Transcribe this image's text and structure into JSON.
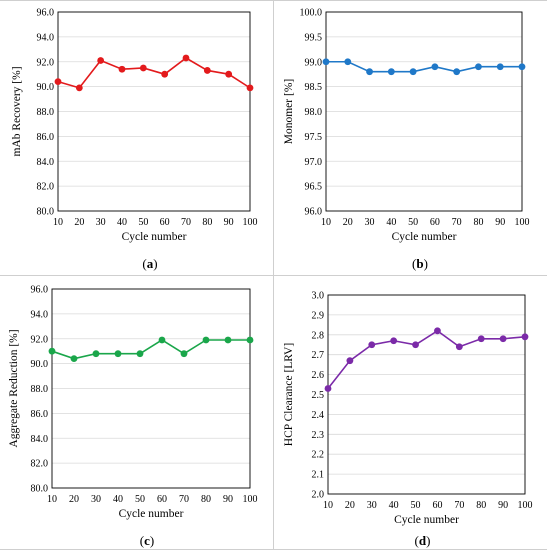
{
  "chart_data": [
    {
      "panel": "(a)",
      "panel_letter": "a",
      "type": "line",
      "color": "#e31a1c",
      "x": [
        10,
        20,
        30,
        40,
        50,
        60,
        70,
        80,
        90,
        100
      ],
      "series": [
        {
          "values": [
            90.4,
            89.9,
            92.1,
            91.4,
            91.5,
            91.0,
            92.3,
            91.3,
            91.0,
            89.9
          ]
        }
      ],
      "xlabel": "Cycle number",
      "ylabel": "mAb Recovery  [%]",
      "xlim": [
        10,
        100
      ],
      "ylim": [
        80.0,
        96.0
      ],
      "yticks": [
        "80.0",
        "82.0",
        "84.0",
        "86.0",
        "88.0",
        "90.0",
        "92.0",
        "94.0",
        "96.0"
      ],
      "xticks": [
        "10",
        "20",
        "30",
        "40",
        "50",
        "60",
        "70",
        "80",
        "90",
        "100"
      ],
      "grid": true
    },
    {
      "panel": "(b)",
      "panel_letter": "b",
      "type": "line",
      "color": "#1f78c8",
      "x": [
        10,
        20,
        30,
        40,
        50,
        60,
        70,
        80,
        90,
        100
      ],
      "series": [
        {
          "values": [
            99.0,
            99.0,
            98.8,
            98.8,
            98.8,
            98.9,
            98.8,
            98.9,
            98.9,
            98.9
          ]
        }
      ],
      "xlabel": "Cycle number",
      "ylabel": "Monomer [%]",
      "xlim": [
        10,
        100
      ],
      "ylim": [
        96.0,
        100.0
      ],
      "yticks": [
        "96.0",
        "96.5",
        "97.0",
        "97.5",
        "98.0",
        "98.5",
        "99.0",
        "99.5",
        "100.0"
      ],
      "xticks": [
        "10",
        "20",
        "30",
        "40",
        "50",
        "60",
        "70",
        "80",
        "90",
        "100"
      ],
      "grid": true
    },
    {
      "panel": "(c)",
      "panel_letter": "c",
      "type": "line",
      "color": "#1aa64a",
      "x": [
        10,
        20,
        30,
        40,
        50,
        60,
        70,
        80,
        90,
        100
      ],
      "series": [
        {
          "values": [
            91.0,
            90.4,
            90.8,
            90.8,
            90.8,
            91.9,
            90.8,
            91.9,
            91.9,
            91.9
          ]
        }
      ],
      "xlabel": "Cycle number",
      "ylabel": "Aggregate Reduction [%]",
      "xlim": [
        10,
        100
      ],
      "ylim": [
        80.0,
        96.0
      ],
      "yticks": [
        "80.0",
        "82.0",
        "84.0",
        "86.0",
        "88.0",
        "90.0",
        "92.0",
        "94.0",
        "96.0"
      ],
      "xticks": [
        "10",
        "20",
        "30",
        "40",
        "50",
        "60",
        "70",
        "80",
        "90",
        "100"
      ],
      "grid": true
    },
    {
      "panel": "(d)",
      "panel_letter": "d",
      "type": "line",
      "color": "#7b2aa8",
      "x": [
        10,
        20,
        30,
        40,
        50,
        60,
        70,
        80,
        90,
        100
      ],
      "series": [
        {
          "values": [
            2.53,
            2.67,
            2.75,
            2.77,
            2.75,
            2.82,
            2.74,
            2.78,
            2.78,
            2.79
          ]
        }
      ],
      "xlabel": "Cycle number",
      "ylabel": "HCP Clearance [LRV]",
      "xlim": [
        10,
        100
      ],
      "ylim": [
        2.0,
        3.0
      ],
      "yticks": [
        "2.0",
        "2.1",
        "2.2",
        "2.3",
        "2.4",
        "2.5",
        "2.6",
        "2.7",
        "2.8",
        "2.9",
        "3.0"
      ],
      "xticks": [
        "10",
        "20",
        "30",
        "40",
        "50",
        "60",
        "70",
        "80",
        "90",
        "100"
      ],
      "grid": true
    }
  ]
}
